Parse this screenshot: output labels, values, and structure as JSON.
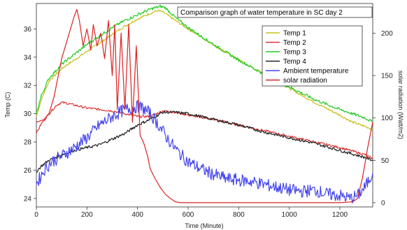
{
  "chart_data": {
    "type": "line",
    "title": "Comparison graph of water temperature in SC day 2",
    "xlabel": "Time (Minute)",
    "ylabel": "Temp (C)",
    "y2label": "solar radiation (Watt/m2)",
    "xlim": [
      0,
      1330
    ],
    "ylim": [
      23.4,
      37.8
    ],
    "y2lim": [
      -5,
      235
    ],
    "xticks": [
      0,
      200,
      400,
      600,
      800,
      1000,
      1200
    ],
    "yticks": [
      24,
      26,
      28,
      30,
      32,
      34,
      36
    ],
    "y2ticks": [
      0,
      50,
      100,
      150,
      200
    ],
    "legend_position": "top-right",
    "grid": false,
    "series": [
      {
        "name": "Temp 1",
        "color": "#c8c020",
        "axis": "left",
        "x": [
          0,
          20,
          50,
          100,
          150,
          200,
          250,
          300,
          350,
          400,
          450,
          480,
          500,
          550,
          600,
          700,
          800,
          900,
          1000,
          1100,
          1200,
          1250,
          1300,
          1330
        ],
        "y": [
          29.8,
          31.0,
          32.3,
          33.2,
          33.8,
          34.4,
          35.0,
          35.6,
          36.2,
          36.7,
          37.1,
          37.3,
          37.2,
          36.6,
          36.0,
          34.9,
          33.8,
          32.8,
          31.8,
          30.8,
          29.9,
          29.4,
          29.1,
          28.9
        ]
      },
      {
        "name": "Temp 2",
        "color": "#dd3333",
        "axis": "left",
        "x": [
          0,
          20,
          50,
          80,
          100,
          130,
          200,
          300,
          400,
          450,
          500,
          550,
          600,
          700,
          800,
          900,
          1000,
          1100,
          1200,
          1300,
          1330
        ],
        "y": [
          28.6,
          29.3,
          30.0,
          30.6,
          30.8,
          30.7,
          30.4,
          30.2,
          29.8,
          29.8,
          30.2,
          30.1,
          29.9,
          29.6,
          29.2,
          28.8,
          28.4,
          28.0,
          27.6,
          27.1,
          26.8
        ]
      },
      {
        "name": "Temp 3",
        "color": "#22cc22",
        "axis": "left",
        "x": [
          0,
          20,
          50,
          100,
          150,
          200,
          250,
          300,
          350,
          400,
          450,
          490,
          510,
          550,
          600,
          700,
          800,
          900,
          1000,
          1100,
          1200,
          1300,
          1330
        ],
        "y": [
          30.0,
          31.3,
          32.5,
          33.5,
          34.2,
          34.9,
          35.5,
          36.1,
          36.6,
          37.0,
          37.4,
          37.6,
          37.5,
          36.8,
          36.1,
          34.9,
          33.8,
          32.8,
          31.9,
          31.0,
          30.3,
          29.7,
          29.4
        ]
      },
      {
        "name": "Temp 4",
        "color": "#222222",
        "axis": "left",
        "x": [
          0,
          20,
          50,
          100,
          150,
          200,
          250,
          300,
          350,
          400,
          450,
          500,
          550,
          600,
          700,
          800,
          900,
          1000,
          1100,
          1200,
          1300,
          1330
        ],
        "y": [
          25.9,
          26.3,
          26.7,
          27.1,
          27.4,
          27.6,
          27.8,
          28.2,
          28.6,
          29.2,
          29.6,
          30.1,
          30.1,
          30.0,
          29.6,
          29.2,
          28.7,
          28.3,
          27.9,
          27.4,
          26.9,
          26.7
        ]
      },
      {
        "name": "Ambient temperature",
        "color": "#4444ee",
        "axis": "left",
        "x": [
          0,
          30,
          60,
          100,
          150,
          200,
          250,
          300,
          350,
          400,
          420,
          450,
          480,
          520,
          560,
          600,
          650,
          700,
          750,
          800,
          850,
          900,
          950,
          1000,
          1050,
          1100,
          1150,
          1200,
          1240,
          1270,
          1300,
          1330
        ],
        "y": [
          25.0,
          26.0,
          26.6,
          27.0,
          27.6,
          28.3,
          29.2,
          29.8,
          30.3,
          30.5,
          30.4,
          30.0,
          29.3,
          28.2,
          27.3,
          26.6,
          26.1,
          25.7,
          25.4,
          25.3,
          25.2,
          25.0,
          24.8,
          24.6,
          24.5,
          24.6,
          24.3,
          24.2,
          24.0,
          24.2,
          24.8,
          25.8
        ]
      },
      {
        "name": "solar radiation",
        "color": "#dd2222",
        "axis": "right",
        "x": [
          0,
          30,
          50,
          70,
          100,
          130,
          150,
          160,
          170,
          185,
          200,
          215,
          225,
          240,
          255,
          270,
          285,
          300,
          310,
          320,
          335,
          350,
          365,
          380,
          395,
          410,
          425,
          440,
          450,
          470,
          490,
          510,
          530,
          550,
          570,
          600,
          700,
          800,
          900,
          1000,
          1100,
          1200,
          1250,
          1270,
          1290,
          1310,
          1330
        ],
        "y": [
          95,
          98,
          105,
          125,
          170,
          200,
          220,
          228,
          215,
          185,
          205,
          180,
          210,
          185,
          200,
          170,
          215,
          150,
          210,
          110,
          200,
          110,
          210,
          95,
          185,
          80,
          70,
          55,
          40,
          28,
          18,
          10,
          5,
          1,
          0,
          0,
          0,
          0,
          0,
          0,
          0,
          0,
          1,
          5,
          30,
          65,
          95
        ]
      }
    ]
  }
}
